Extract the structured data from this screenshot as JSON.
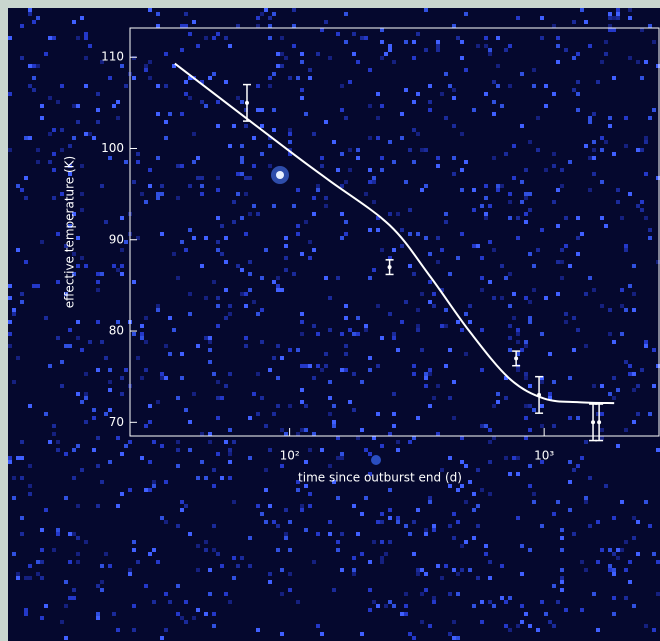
{
  "chart_data": {
    "type": "scatter",
    "xlabel": "time since outburst end (d)",
    "ylabel": "effective temperature (K)",
    "xscale": "log",
    "xlim": [
      23.6,
      2826
    ],
    "ylim": [
      68.5,
      113.2
    ],
    "xticks": [
      {
        "value": 100,
        "label": "10²"
      },
      {
        "value": 1000,
        "label": "10³"
      }
    ],
    "yticks": [
      70,
      80,
      90,
      100,
      110
    ],
    "color": "#ffffff",
    "series": [
      {
        "kind": "points",
        "x": [
          68,
          247,
          776,
          955,
          1556,
          1644
        ],
        "values": [
          105,
          87,
          77,
          73,
          70,
          70
        ],
        "errors": [
          2,
          0.8,
          0.8,
          2,
          2,
          2
        ]
      },
      {
        "kind": "line",
        "x": [
          35.4,
          100,
          143,
          247,
          354,
          508,
          730,
          1000,
          1371,
          1884
        ],
        "values": [
          109.3,
          99.7,
          96.5,
          91.6,
          86.1,
          80,
          74.8,
          72.6,
          72.2,
          72.1
        ]
      }
    ]
  }
}
